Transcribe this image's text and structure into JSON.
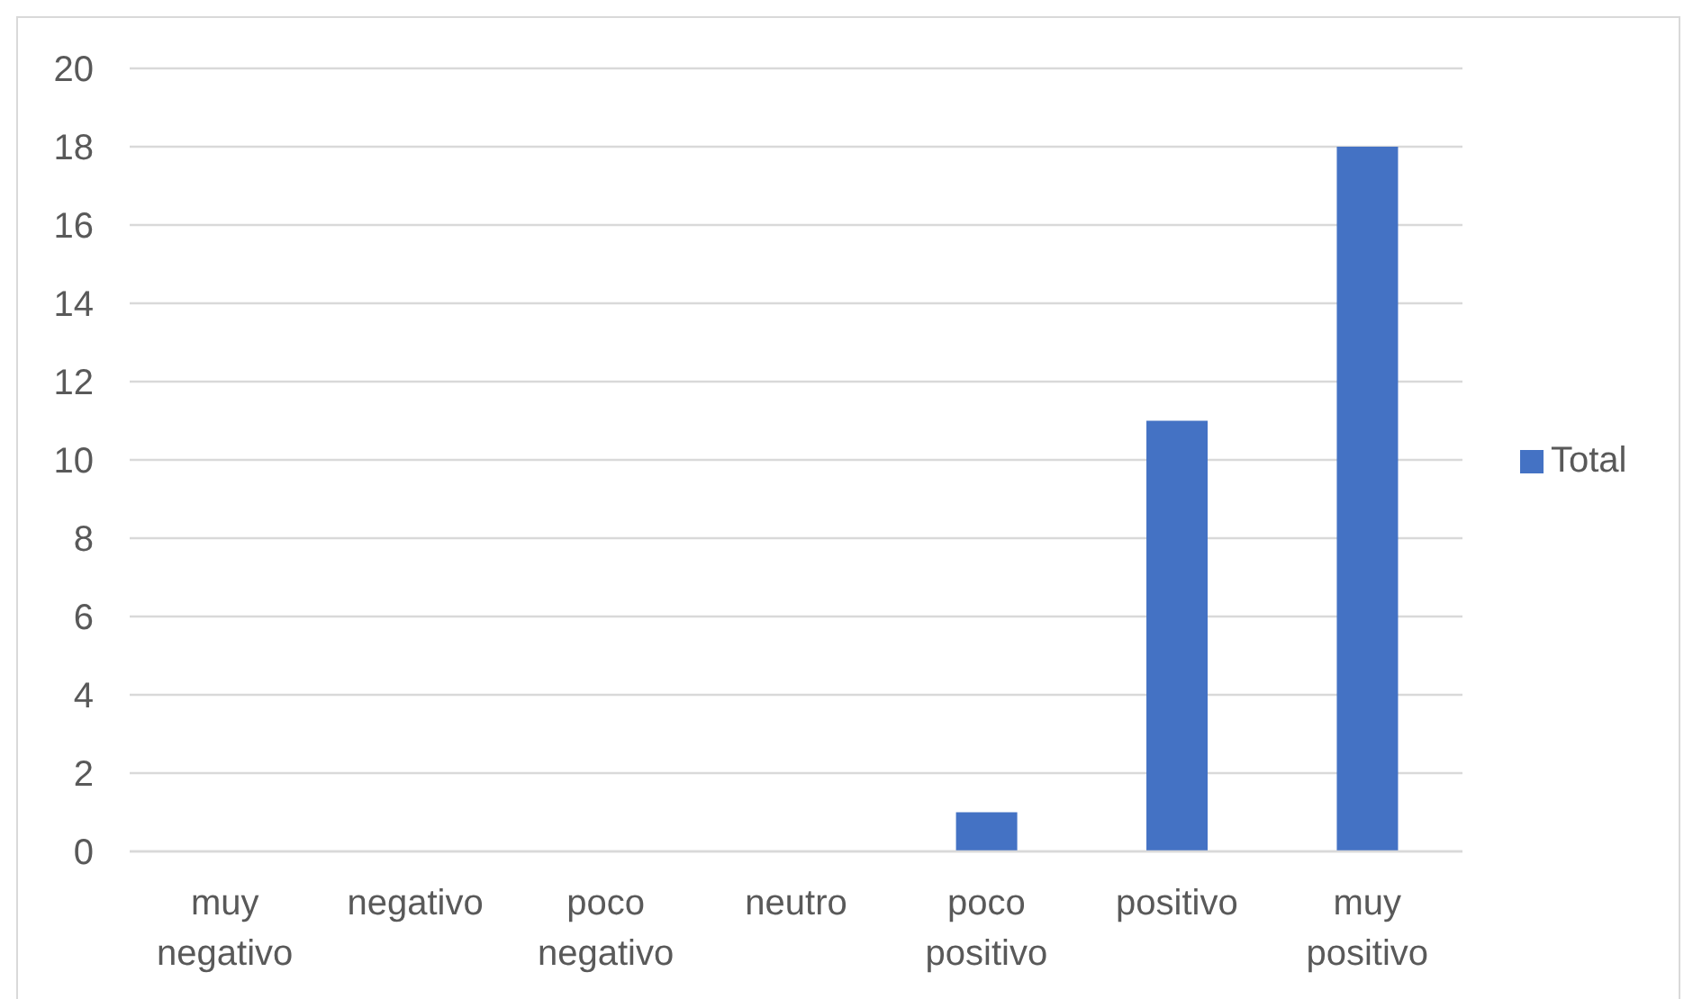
{
  "chart_data": {
    "type": "bar",
    "categories": [
      "muy negativo",
      "negativo",
      "poco negativo",
      "neutro",
      "poco positivo",
      "positivo",
      "muy positivo"
    ],
    "series": [
      {
        "name": "Total",
        "color": "#4472c4",
        "values": [
          0,
          0,
          0,
          0,
          1,
          11,
          18
        ]
      }
    ],
    "ylim": [
      0,
      20
    ],
    "yticks": [
      0,
      2,
      4,
      6,
      8,
      10,
      12,
      14,
      16,
      18,
      20
    ],
    "grid": "y",
    "legend": "right"
  }
}
